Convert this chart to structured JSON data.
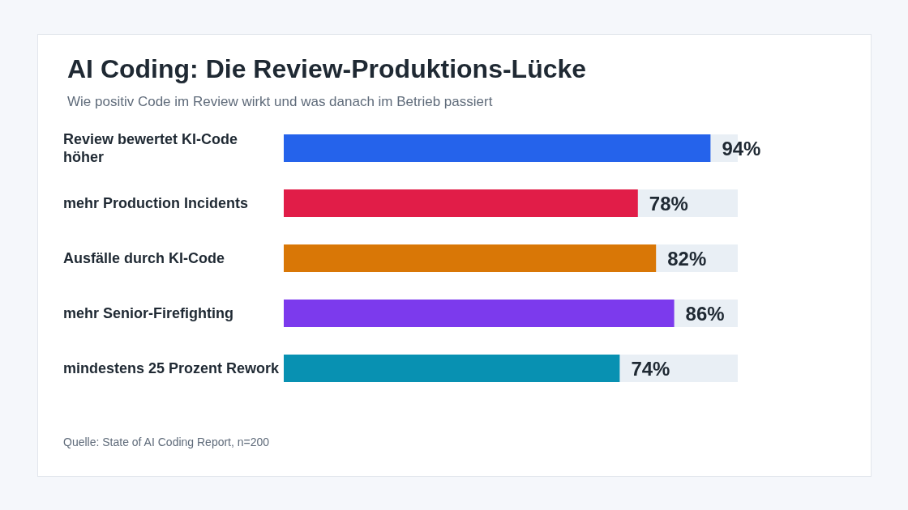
{
  "chart_data": {
    "type": "bar",
    "orientation": "horizontal",
    "title": "AI Coding: Die Review-Produktions-Lücke",
    "subtitle": "Wie positiv Code im Review wirkt und was danach im Betrieb passiert",
    "categories": [
      "Review bewertet KI-Code höher",
      "mehr Production Incidents",
      "Ausfälle durch KI-Code",
      "mehr Senior-Firefighting",
      "mindestens 25 Prozent Rework"
    ],
    "values": [
      94,
      78,
      82,
      86,
      74
    ],
    "colors": [
      "#2563eb",
      "#e11d48",
      "#d97706",
      "#7c3aed",
      "#0891b2"
    ],
    "value_labels": [
      "94%",
      "78%",
      "82%",
      "86%",
      "74%"
    ],
    "xlim": [
      0,
      100
    ],
    "tick_labels": "y",
    "annotations": [
      "Quelle: State of AI Coding Report, n=200"
    ]
  }
}
